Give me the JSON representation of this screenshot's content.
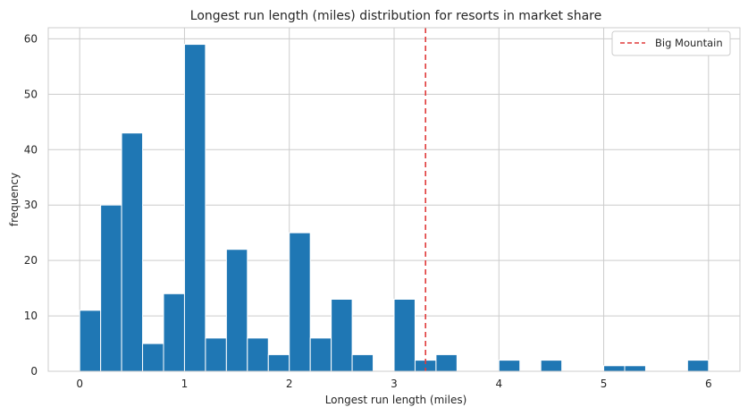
{
  "chart_data": {
    "type": "bar",
    "subtype": "histogram",
    "title": "Longest run length (miles) distribution for resorts in market share",
    "xlabel": "Longest run length (miles)",
    "ylabel": "frequency",
    "xlim": [
      -0.3,
      6.3
    ],
    "ylim": [
      0,
      62
    ],
    "xticks": [
      0,
      1,
      2,
      3,
      4,
      5,
      6
    ],
    "yticks": [
      0,
      10,
      20,
      30,
      40,
      50,
      60
    ],
    "grid": true,
    "bin_width": 0.2,
    "bins": [
      {
        "start": 0.0,
        "count": 11
      },
      {
        "start": 0.2,
        "count": 30
      },
      {
        "start": 0.4,
        "count": 43
      },
      {
        "start": 0.6,
        "count": 5
      },
      {
        "start": 0.8,
        "count": 14
      },
      {
        "start": 1.0,
        "count": 59
      },
      {
        "start": 1.2,
        "count": 6
      },
      {
        "start": 1.4,
        "count": 22
      },
      {
        "start": 1.6,
        "count": 6
      },
      {
        "start": 1.8,
        "count": 3
      },
      {
        "start": 2.0,
        "count": 25
      },
      {
        "start": 2.2,
        "count": 6
      },
      {
        "start": 2.4,
        "count": 13
      },
      {
        "start": 2.6,
        "count": 3
      },
      {
        "start": 2.8,
        "count": 0
      },
      {
        "start": 3.0,
        "count": 13
      },
      {
        "start": 3.2,
        "count": 2
      },
      {
        "start": 3.4,
        "count": 3
      },
      {
        "start": 3.6,
        "count": 0
      },
      {
        "start": 3.8,
        "count": 0
      },
      {
        "start": 4.0,
        "count": 2
      },
      {
        "start": 4.2,
        "count": 0
      },
      {
        "start": 4.4,
        "count": 2
      },
      {
        "start": 4.6,
        "count": 0
      },
      {
        "start": 4.8,
        "count": 0
      },
      {
        "start": 5.0,
        "count": 1
      },
      {
        "start": 5.2,
        "count": 1
      },
      {
        "start": 5.4,
        "count": 0
      },
      {
        "start": 5.6,
        "count": 0
      },
      {
        "start": 5.8,
        "count": 2
      }
    ],
    "reference_line": {
      "label": "Big Mountain",
      "x": 3.3,
      "style": "dashed",
      "color": "#e03a3a"
    },
    "legend": {
      "placement": "top-right",
      "entries": [
        "Big Mountain"
      ]
    },
    "colors": {
      "bar": "#1f77b4",
      "grid": "#cccccc",
      "axes": "#cccccc"
    }
  }
}
